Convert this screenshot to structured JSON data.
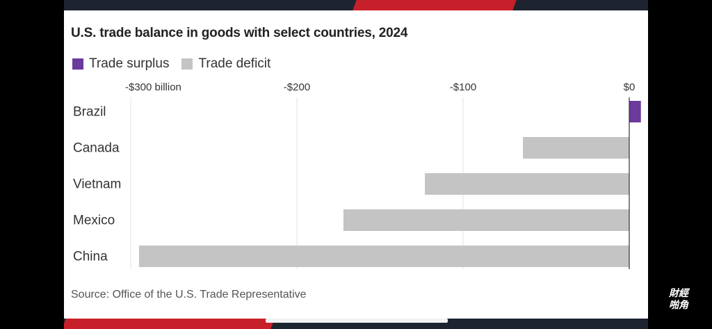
{
  "chart_data": {
    "type": "bar",
    "orientation": "horizontal",
    "title": "U.S. trade balance in goods with select countries, 2024",
    "categories": [
      "Brazil",
      "Canada",
      "Vietnam",
      "Mexico",
      "China"
    ],
    "values": [
      7,
      -64,
      -123,
      -172,
      -295
    ],
    "xlim": [
      -300,
      7
    ],
    "xticks": [
      -300,
      -200,
      -100,
      0
    ],
    "xtick_labels": [
      "-$300 billion",
      "-$200",
      "-$100",
      "$0"
    ],
    "legend": [
      {
        "label": "Trade surplus",
        "color": "#6b3a9c"
      },
      {
        "label": "Trade deficit",
        "color": "#c4c4c4"
      }
    ],
    "grid": true,
    "legend_position": "top-left",
    "source": "Source: Office of the U.S. Trade Representative"
  },
  "colors": {
    "surplus": "#6b3a9c",
    "deficit": "#c4c4c4"
  },
  "watermark": {
    "line1": "財經",
    "line2": "啪角"
  }
}
